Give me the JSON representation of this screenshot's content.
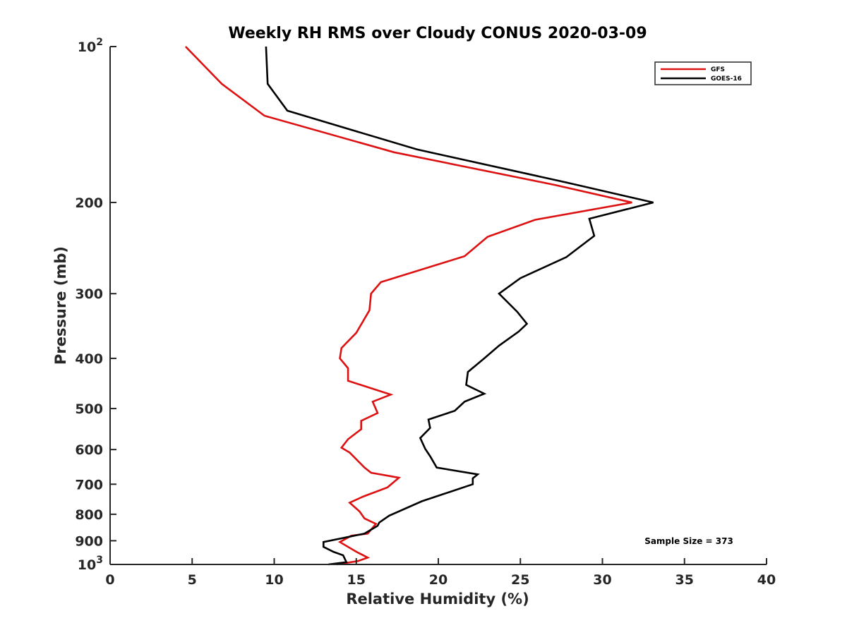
{
  "chart_data": {
    "type": "line",
    "title": "Weekly RH RMS over Cloudy CONUS 2020-03-09",
    "xlabel": "Relative Humidity (%)",
    "ylabel": "Pressure (mb)",
    "xlim": [
      0,
      40
    ],
    "ylim": [
      100,
      1000
    ],
    "y_scale": "log",
    "y_reversed": true,
    "grid": false,
    "legend_position": "top-right",
    "x_ticks": [
      0,
      5,
      10,
      15,
      20,
      25,
      30,
      35,
      40
    ],
    "y_ticks": [
      {
        "value": 100,
        "base": "10",
        "exp": "2"
      },
      {
        "value": 200,
        "label": "200"
      },
      {
        "value": 300,
        "label": "300"
      },
      {
        "value": 400,
        "label": "400"
      },
      {
        "value": 500,
        "label": "500"
      },
      {
        "value": 600,
        "label": "600"
      },
      {
        "value": 700,
        "label": "700"
      },
      {
        "value": 800,
        "label": "800"
      },
      {
        "value": 900,
        "label": "900"
      },
      {
        "value": 1000,
        "base": "10",
        "exp": "3"
      }
    ],
    "series": [
      {
        "name": "GFS",
        "color": "#dd1111",
        "points": [
          [
            4.6,
            100
          ],
          [
            6.8,
            118
          ],
          [
            9.4,
            136
          ],
          [
            17.3,
            160
          ],
          [
            27.1,
            185
          ],
          [
            31.8,
            200
          ],
          [
            25.9,
            216
          ],
          [
            23.0,
            233
          ],
          [
            21.6,
            254
          ],
          [
            16.5,
            285
          ],
          [
            15.9,
            300
          ],
          [
            15.8,
            323
          ],
          [
            15.0,
            357
          ],
          [
            14.1,
            382
          ],
          [
            14.0,
            400
          ],
          [
            14.5,
            418
          ],
          [
            14.5,
            442
          ],
          [
            17.1,
            470
          ],
          [
            16.0,
            485
          ],
          [
            16.3,
            510
          ],
          [
            15.3,
            528
          ],
          [
            15.3,
            548
          ],
          [
            14.5,
            573
          ],
          [
            14.1,
            595
          ],
          [
            14.6,
            608
          ],
          [
            15.5,
            650
          ],
          [
            15.9,
            665
          ],
          [
            17.6,
            680
          ],
          [
            16.9,
            710
          ],
          [
            15.4,
            740
          ],
          [
            14.6,
            760
          ],
          [
            15.2,
            790
          ],
          [
            15.5,
            815
          ],
          [
            16.2,
            835
          ],
          [
            15.7,
            872
          ],
          [
            14.7,
            880
          ],
          [
            14.0,
            905
          ],
          [
            15.0,
            945
          ],
          [
            15.7,
            970
          ],
          [
            15.1,
            985
          ],
          [
            13.8,
            1000
          ]
        ]
      },
      {
        "name": "GOES-16",
        "color": "#000000",
        "points": [
          [
            9.5,
            100
          ],
          [
            9.6,
            118
          ],
          [
            10.8,
            133
          ],
          [
            18.7,
            158
          ],
          [
            27.8,
            183
          ],
          [
            33.1,
            200
          ],
          [
            29.2,
            215
          ],
          [
            29.5,
            232
          ],
          [
            27.8,
            255
          ],
          [
            25.0,
            280
          ],
          [
            23.7,
            300
          ],
          [
            24.8,
            325
          ],
          [
            25.4,
            343
          ],
          [
            24.9,
            355
          ],
          [
            23.7,
            378
          ],
          [
            22.8,
            400
          ],
          [
            21.8,
            425
          ],
          [
            21.7,
            450
          ],
          [
            22.8,
            468
          ],
          [
            21.6,
            485
          ],
          [
            21.0,
            505
          ],
          [
            19.4,
            525
          ],
          [
            19.5,
            545
          ],
          [
            18.9,
            570
          ],
          [
            19.2,
            598
          ],
          [
            19.5,
            618
          ],
          [
            19.9,
            650
          ],
          [
            22.4,
            670
          ],
          [
            22.1,
            682
          ],
          [
            22.1,
            700
          ],
          [
            19.0,
            755
          ],
          [
            17.0,
            805
          ],
          [
            16.4,
            830
          ],
          [
            16.3,
            842
          ],
          [
            15.5,
            872
          ],
          [
            13.0,
            905
          ],
          [
            13.0,
            925
          ],
          [
            13.6,
            945
          ],
          [
            14.2,
            960
          ],
          [
            14.4,
            990
          ],
          [
            13.3,
            1000
          ]
        ]
      }
    ],
    "annotations": [
      {
        "text": "Sample Size = 373"
      }
    ]
  }
}
